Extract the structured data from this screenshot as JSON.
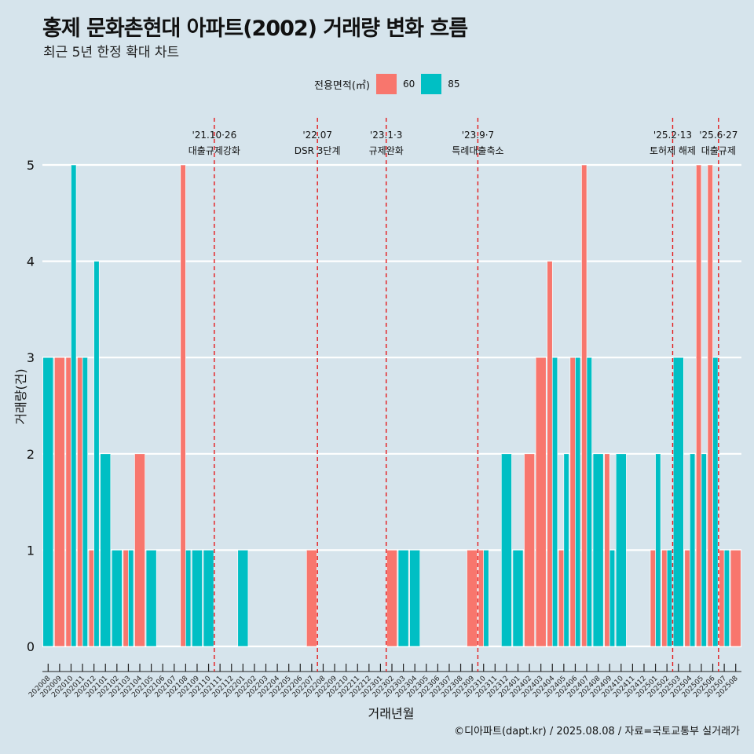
{
  "header": {
    "title": "홍제 문화촌현대 아파트(2002) 거래량 변화 흐름",
    "subtitle": "최근 5년 한정 확대 차트"
  },
  "legend": {
    "title": "전용면적(㎡)",
    "items": [
      {
        "label": "60",
        "color": "#f8766d"
      },
      {
        "label": "85",
        "color": "#00bfc4"
      }
    ]
  },
  "credit": "©디아파트(dapt.kr) / 2025.08.08 / 자료=국토교통부 실거래가",
  "chart_data": {
    "type": "bar",
    "xlabel": "거래년월",
    "ylabel": "거래량(건)",
    "ylim": [
      0,
      5
    ],
    "yticks": [
      0,
      1,
      2,
      3,
      4,
      5
    ],
    "grid": true,
    "legend_position": "top",
    "categories": [
      "202008",
      "202009",
      "202010",
      "202011",
      "202012",
      "202101",
      "202102",
      "202103",
      "202104",
      "202105",
      "202106",
      "202107",
      "202108",
      "202109",
      "202110",
      "202111",
      "202112",
      "202201",
      "202202",
      "202203",
      "202204",
      "202205",
      "202206",
      "202207",
      "202208",
      "202209",
      "202210",
      "202211",
      "202212",
      "202301",
      "202302",
      "202303",
      "202304",
      "202305",
      "202306",
      "202307",
      "202308",
      "202309",
      "202310",
      "202311",
      "202312",
      "202401",
      "202402",
      "202403",
      "202404",
      "202405",
      "202406",
      "202407",
      "202408",
      "202409",
      "202410",
      "202411",
      "202412",
      "202501",
      "202502",
      "202503",
      "202504",
      "202505",
      "202506",
      "202507",
      "202508"
    ],
    "series": [
      {
        "name": "60",
        "color": "#f8766d",
        "values": [
          0,
          3,
          3,
          3,
          1,
          0,
          0,
          1,
          2,
          0,
          0,
          0,
          5,
          0,
          0,
          0,
          0,
          0,
          0,
          0,
          0,
          0,
          0,
          1,
          0,
          0,
          0,
          0,
          0,
          0,
          1,
          0,
          0,
          0,
          0,
          0,
          0,
          1,
          1,
          0,
          0,
          0,
          2,
          3,
          4,
          1,
          3,
          5,
          0,
          2,
          0,
          0,
          0,
          1,
          1,
          0,
          1,
          5,
          5,
          1,
          1
        ]
      },
      {
        "name": "85",
        "color": "#00bfc4",
        "values": [
          3,
          0,
          5,
          3,
          4,
          2,
          1,
          1,
          0,
          1,
          0,
          0,
          1,
          1,
          1,
          0,
          0,
          1,
          0,
          0,
          0,
          0,
          0,
          0,
          0,
          0,
          0,
          0,
          0,
          0,
          0,
          1,
          1,
          0,
          0,
          0,
          0,
          0,
          1,
          0,
          2,
          1,
          0,
          0,
          3,
          2,
          3,
          3,
          2,
          1,
          2,
          0,
          0,
          2,
          1,
          3,
          2,
          2,
          3,
          1,
          0
        ]
      }
    ],
    "annotations": [
      {
        "after": "202110",
        "line1": "'21.10·26",
        "line2": "대출규제강화"
      },
      {
        "after": "202207",
        "line1": "'22.07",
        "line2": "DSR 3단계"
      },
      {
        "after": "202301",
        "line1": "'23.1·3",
        "line2": "규제완화"
      },
      {
        "after": "202309",
        "line1": "'23.9·7",
        "line2": "특례대출축소"
      },
      {
        "after": "202502",
        "line1": "'25.2·13",
        "line2": "토허제 해제"
      },
      {
        "after": "202506",
        "line1": "'25.6·27",
        "line2": "대출규제"
      }
    ]
  }
}
